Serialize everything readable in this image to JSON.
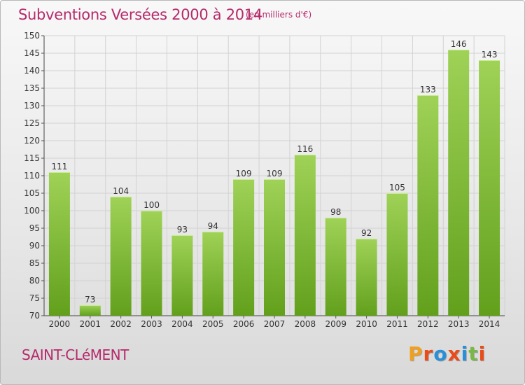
{
  "header": {
    "title": "Subventions Versées 2000 à 2014",
    "subtitle": "(en milliers d'€)"
  },
  "footer": {
    "commune": "SAINT-CLéMENT",
    "logo_text": "Proxiti"
  },
  "colors": {
    "title": "#b52a6b",
    "bar_light": "#9fd257",
    "bar_dark": "#62a01c",
    "grid": "#d2d2d2",
    "logo": [
      "#f0a020",
      "#e84c1a",
      "#2a8fd6",
      "#e84c1a",
      "#2a8fd6",
      "#7ab648",
      "#e84c1a"
    ]
  },
  "chart_data": {
    "type": "bar",
    "title": "Subventions Versées 2000 à 2014",
    "subtitle": "(en milliers d'€)",
    "categories": [
      "2000",
      "2001",
      "2002",
      "2003",
      "2004",
      "2005",
      "2006",
      "2007",
      "2008",
      "2009",
      "2010",
      "2011",
      "2012",
      "2013",
      "2014"
    ],
    "values": [
      111,
      73,
      104,
      100,
      93,
      94,
      109,
      109,
      116,
      98,
      92,
      105,
      133,
      146,
      143
    ],
    "ylim": [
      70,
      150
    ],
    "yticks": [
      70,
      75,
      80,
      85,
      90,
      95,
      100,
      105,
      110,
      115,
      120,
      125,
      130,
      135,
      140,
      145,
      150
    ],
    "grid": true,
    "data_labels": true
  }
}
